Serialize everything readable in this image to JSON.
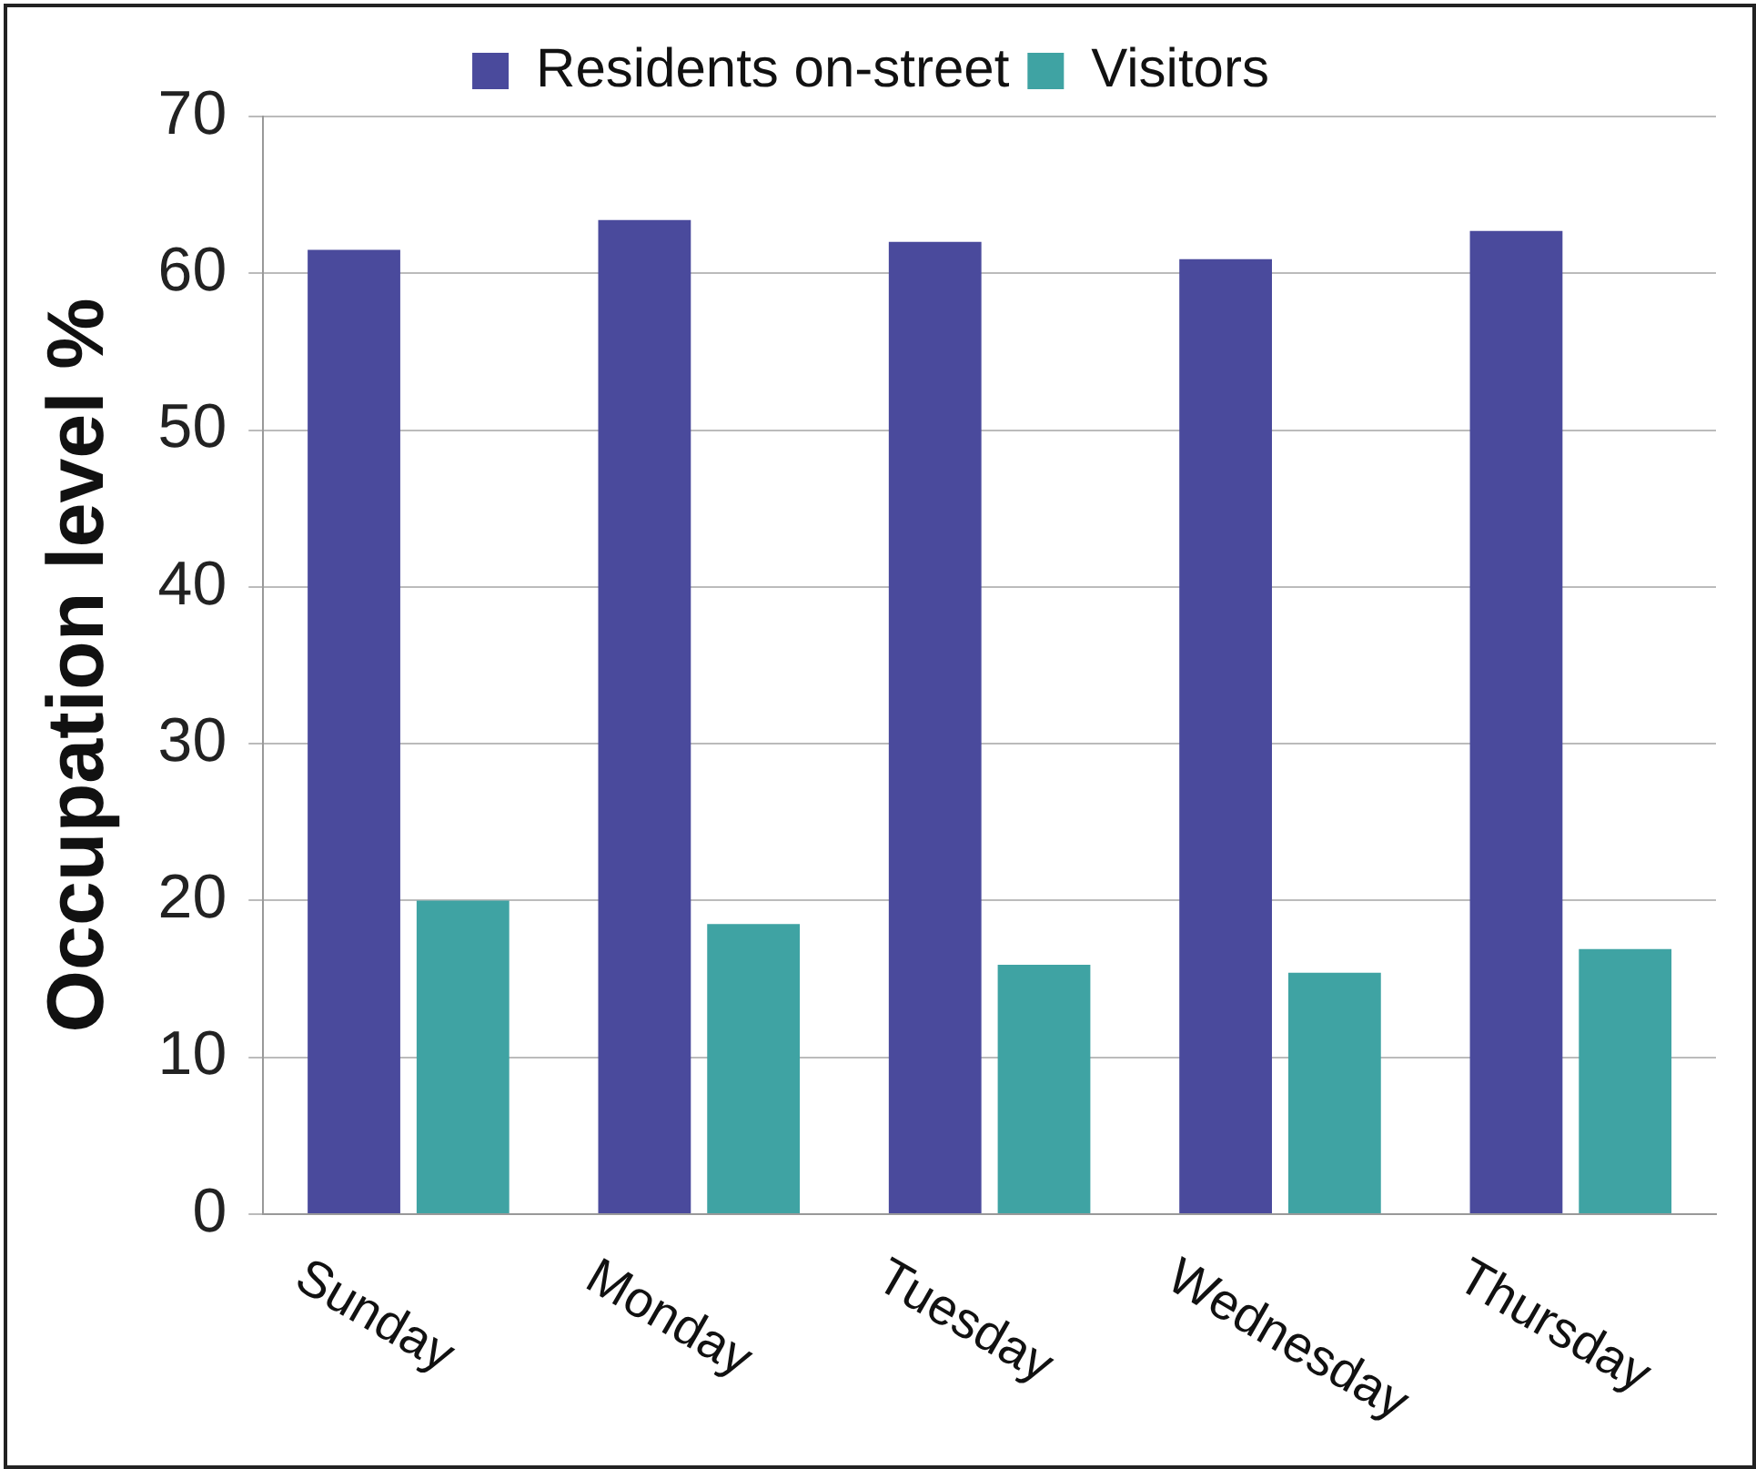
{
  "chart_data": {
    "type": "bar",
    "ylabel": "Occupation level %",
    "categories": [
      "Sunday",
      "Monday",
      "Tuesday",
      "Wednesday",
      "Thursday"
    ],
    "series": [
      {
        "name": "Residents on-street",
        "color": "#4a4a9c",
        "values": [
          61.5,
          63.4,
          62.0,
          60.9,
          62.7
        ]
      },
      {
        "name": "Visitors",
        "color": "#3fa3a3",
        "values": [
          20.0,
          18.5,
          15.9,
          15.4,
          16.9
        ]
      }
    ],
    "ylim": [
      0,
      70
    ],
    "yticks": [
      0,
      10,
      20,
      30,
      40,
      50,
      60,
      70
    ],
    "grid": "y",
    "legend": "top"
  }
}
